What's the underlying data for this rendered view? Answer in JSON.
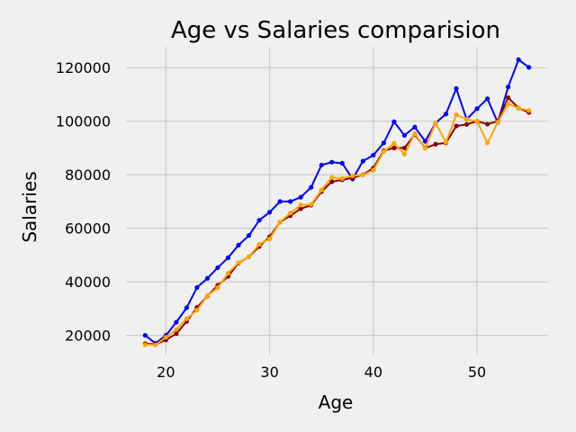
{
  "chart_data": {
    "type": "line",
    "title": "Age vs Salaries comparision",
    "xlabel": "Age",
    "ylabel": "Salaries",
    "xlim": [
      16.15,
      56.85
    ],
    "ylim": [
      12800,
      127800
    ],
    "xticks": [
      20,
      30,
      40,
      50
    ],
    "yticks": [
      20000,
      40000,
      60000,
      80000,
      100000,
      120000
    ],
    "grid": true,
    "legend": "none",
    "x": [
      18,
      19,
      20,
      21,
      22,
      23,
      24,
      25,
      26,
      27,
      28,
      29,
      30,
      31,
      32,
      33,
      34,
      35,
      36,
      37,
      38,
      39,
      40,
      41,
      42,
      43,
      44,
      45,
      46,
      47,
      48,
      49,
      50,
      51,
      52,
      53,
      54,
      55
    ],
    "series": [
      {
        "color": "#0000ff",
        "values": [
          20000,
          17000,
          20000,
          24900,
          30300,
          37900,
          41300,
          45300,
          49000,
          53700,
          57300,
          63000,
          66000,
          70000,
          70000,
          71600,
          75300,
          83600,
          84700,
          84300,
          78400,
          85100,
          87300,
          91900,
          99800,
          94700,
          97800,
          92500,
          99300,
          102700,
          112200,
          100700,
          104700,
          108400,
          99500,
          112800,
          123000,
          120100
        ]
      },
      {
        "color": "#8b0000",
        "values": [
          16900,
          16600,
          18300,
          20600,
          25200,
          30400,
          34700,
          38700,
          42000,
          47000,
          49400,
          53200,
          56800,
          62300,
          64700,
          67300,
          68600,
          73700,
          77400,
          78100,
          78800,
          80000,
          82500,
          89000,
          90000,
          90000,
          95000,
          90000,
          91400,
          91900,
          98200,
          98800,
          100000,
          98900,
          100000,
          108800,
          104900,
          103300
        ]
      },
      {
        "color": "#ffa500",
        "values": [
          16500,
          16400,
          19300,
          22200,
          26200,
          29400,
          34800,
          37800,
          43200,
          47200,
          49400,
          54000,
          56000,
          62300,
          65700,
          68700,
          68900,
          74300,
          79000,
          78600,
          79600,
          79900,
          81700,
          88700,
          91700,
          87700,
          95400,
          89900,
          99400,
          92100,
          102400,
          100700,
          100000,
          91900,
          99600,
          106500,
          104900,
          104000
        ]
      }
    ]
  }
}
